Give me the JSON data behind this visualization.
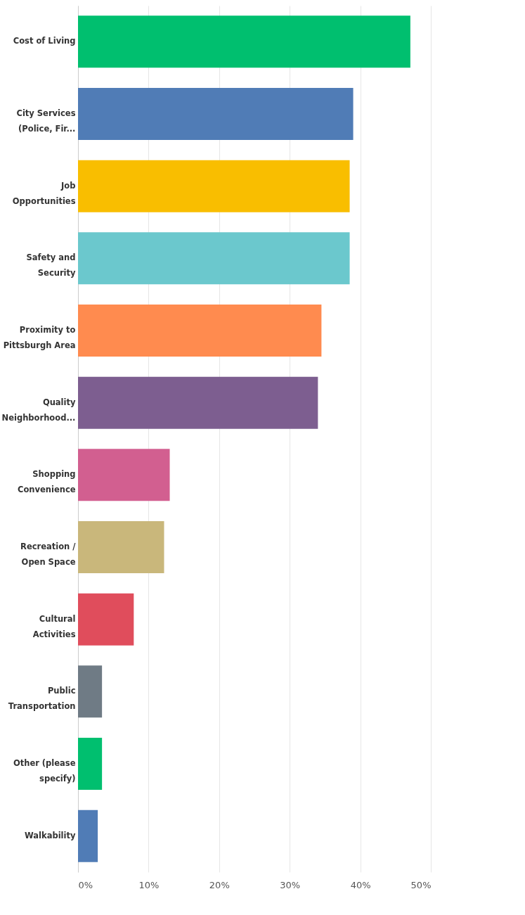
{
  "chart_data": {
    "type": "bar",
    "orientation": "horizontal",
    "categories": [
      "Cost of Living",
      "City Services (Police, Fir...",
      "Job Opportunities",
      "Safety and Security",
      "Proximity to Pittsburgh Area",
      "Quality Neighborhood...",
      "Shopping Convenience",
      "Recreation / Open Space",
      "Cultural Activities",
      "Public Transportation",
      "Other (please specify)",
      "Walkability"
    ],
    "values": [
      47.1,
      39.0,
      38.5,
      38.5,
      34.5,
      34.0,
      13.0,
      12.2,
      7.9,
      3.4,
      3.4,
      2.8
    ],
    "colors": [
      "#00bf6f",
      "#507cb6",
      "#f9be00",
      "#6bc8cd",
      "#ff8b4f",
      "#7d5e90",
      "#d25f90",
      "#c9b77b",
      "#e04d5c",
      "#6f7b85",
      "#00bf6f",
      "#507cb6"
    ],
    "xlim": [
      0,
      50
    ],
    "xticks": [
      {
        "value": 0,
        "label": "0%"
      },
      {
        "value": 10,
        "label": "10%"
      },
      {
        "value": 20,
        "label": "20%"
      },
      {
        "value": 30,
        "label": "30%"
      },
      {
        "value": 40,
        "label": "40%"
      },
      {
        "value": 50,
        "label": "50%"
      }
    ],
    "grid": "x"
  }
}
